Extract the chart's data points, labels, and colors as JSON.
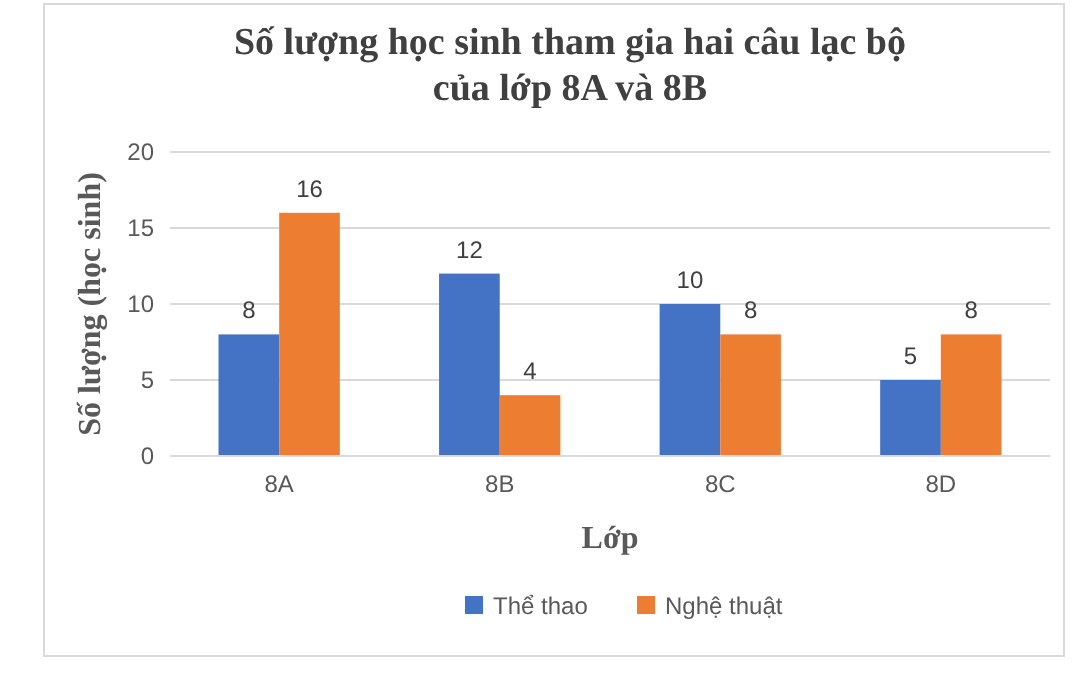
{
  "chart_data": {
    "type": "bar",
    "title": "Số lượng học sinh tham gia hai câu lạc bộ của lớp 8A và 8B",
    "xlabel": "Lớp",
    "ylabel": "Số lượng (học sinh)",
    "categories": [
      "8A",
      "8B",
      "8C",
      "8D"
    ],
    "series": [
      {
        "name": "Thể thao",
        "color": "#4472c4",
        "values": [
          8,
          12,
          10,
          5
        ]
      },
      {
        "name": "Nghệ thuật",
        "color": "#ed7d31",
        "values": [
          16,
          4,
          8,
          8
        ]
      }
    ],
    "ylim": [
      0,
      20
    ],
    "yticks": [
      0,
      5,
      10,
      15,
      20
    ],
    "grid": "y",
    "legend": "bottom",
    "data_labels": true
  }
}
